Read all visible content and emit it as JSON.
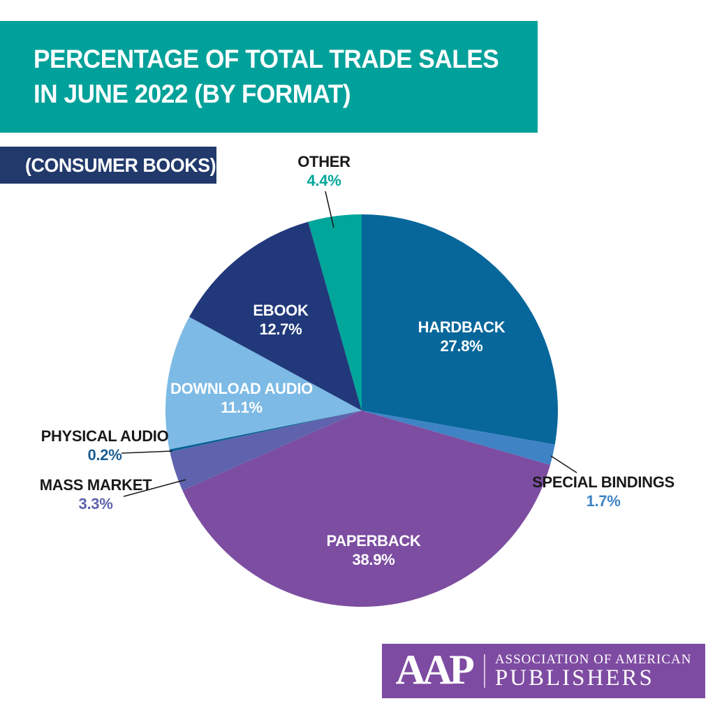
{
  "header": {
    "title_line1": "PERCENTAGE OF TOTAL TRADE SALES",
    "title_line2": "IN JUNE 2022 (BY FORMAT)",
    "bg_color": "#00A19A",
    "text_color": "#FFFFFF"
  },
  "subtitle_banner": {
    "label": "(CONSUMER BOOKS)",
    "bg_color": "#21396B",
    "text_color": "#FFFFFF"
  },
  "chart_data": {
    "type": "pie",
    "title": "Percentage of Total Trade Sales in June 2022 (By Format)",
    "subtitle": "(Consumer Books)",
    "start_at": "top",
    "direction": "clockwise",
    "legend_position": "none",
    "slices": [
      {
        "label": "HARDBACK",
        "value": 27.8,
        "display": "27.8%",
        "color": "#07679B",
        "placement": "inside",
        "text_color": "#FFFFFF"
      },
      {
        "label": "SPECIAL BINDINGS",
        "value": 1.7,
        "display": "1.7%",
        "color": "#3F83C5",
        "placement": "outside",
        "text_color": "#1A1A1A",
        "pct_color": "#3F83C5"
      },
      {
        "label": "PAPERBACK",
        "value": 38.9,
        "display": "38.9%",
        "color": "#7C4DA1",
        "placement": "inside",
        "text_color": "#FFFFFF"
      },
      {
        "label": "MASS MARKET",
        "value": 3.3,
        "display": "3.3%",
        "color": "#5F63AD",
        "placement": "outside",
        "text_color": "#1A1A1A",
        "pct_color": "#5F63AD"
      },
      {
        "label": "PHYSICAL AUDIO",
        "value": 0.2,
        "display": "0.2%",
        "color": "#0A6195",
        "placement": "outside",
        "text_color": "#1A1A1A",
        "pct_color": "#1B5E94"
      },
      {
        "label": "DOWNLOAD AUDIO",
        "value": 11.1,
        "display": "11.1%",
        "color": "#7DBAE5",
        "placement": "inside",
        "text_color": "#FFFFFF"
      },
      {
        "label": "EBOOK",
        "value": 12.7,
        "display": "12.7%",
        "color": "#21397B",
        "placement": "inside",
        "text_color": "#FFFFFF"
      },
      {
        "label": "OTHER",
        "value": 4.4,
        "display": "4.4%",
        "color": "#00A69A",
        "placement": "outside",
        "text_color": "#1A1A1A",
        "pct_color": "#00A69A"
      }
    ]
  },
  "logo": {
    "abbr": "AAP",
    "org_line1": "ASSOCIATION OF AMERICAN",
    "org_line2": "PUBLISHERS",
    "bg_color": "#7E4BA2",
    "text_color": "#FFFFFF"
  }
}
